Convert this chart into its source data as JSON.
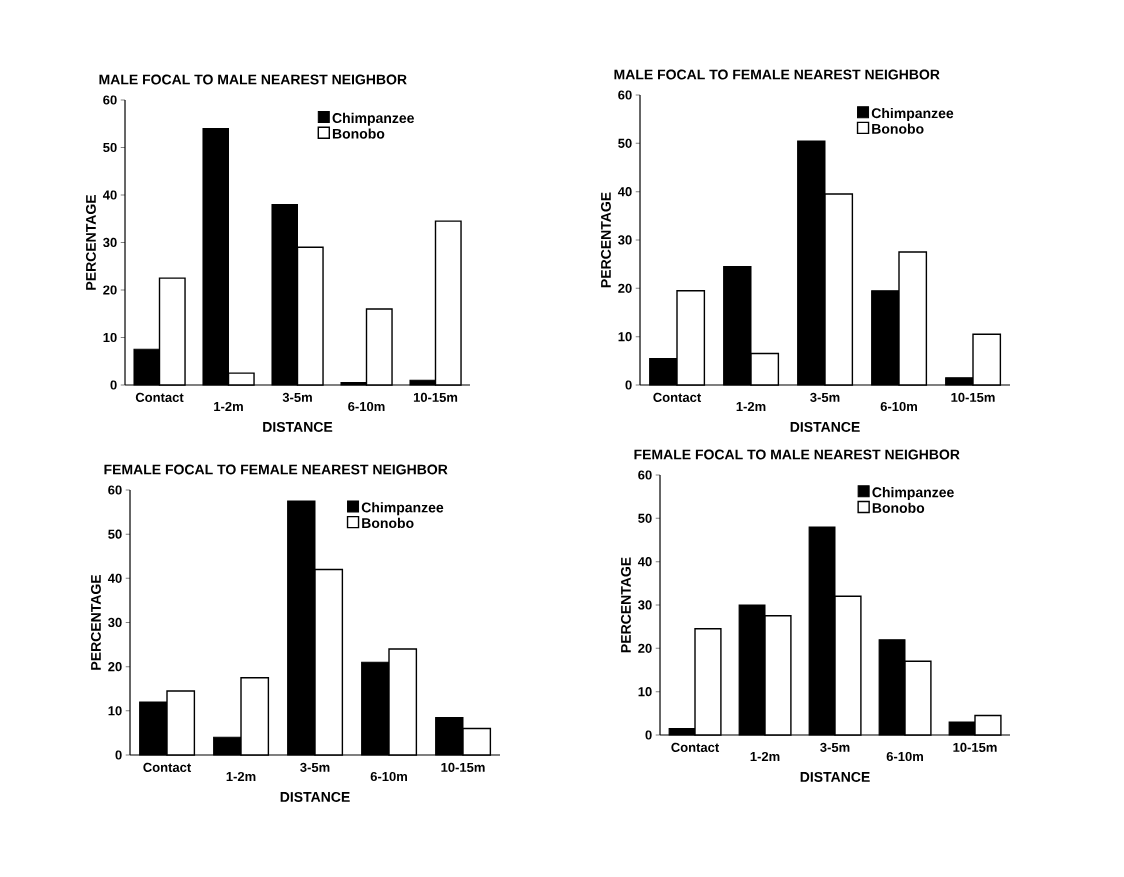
{
  "chart_data": [
    {
      "type": "bar",
      "title": "MALE FOCAL TO MALE NEAREST NEIGHBOR",
      "xlabel": "DISTANCE",
      "ylabel": "PERCENTAGE",
      "categories": [
        "Contact",
        "1-2m",
        "3-5m",
        "6-10m",
        "10-15m"
      ],
      "ylim": [
        0,
        60
      ],
      "yticks": [
        0,
        10,
        20,
        30,
        40,
        50,
        60
      ],
      "legend": "top right",
      "series": [
        {
          "name": "Chimpanzee",
          "color": "#000000",
          "values": [
            7.5,
            54,
            38,
            0.5,
            1
          ]
        },
        {
          "name": "Bonobo",
          "color": "#ffffff",
          "values": [
            22.5,
            2.5,
            29,
            16,
            34.5
          ]
        }
      ]
    },
    {
      "type": "bar",
      "title": "MALE FOCAL TO FEMALE NEAREST NEIGHBOR",
      "xlabel": "DISTANCE",
      "ylabel": "PERCENTAGE",
      "categories": [
        "Contact",
        "1-2m",
        "3-5m",
        "6-10m",
        "10-15m"
      ],
      "ylim": [
        0,
        60
      ],
      "yticks": [
        0,
        10,
        20,
        30,
        40,
        50,
        60
      ],
      "legend": "top right",
      "series": [
        {
          "name": "Chimpanzee",
          "color": "#000000",
          "values": [
            5.5,
            24.5,
            50.5,
            19.5,
            1.5
          ]
        },
        {
          "name": "Bonobo",
          "color": "#ffffff",
          "values": [
            19.5,
            6.5,
            39.5,
            27.5,
            10.5
          ]
        }
      ]
    },
    {
      "type": "bar",
      "title": "FEMALE FOCAL TO FEMALE NEAREST NEIGHBOR",
      "xlabel": "DISTANCE",
      "ylabel": "PERCENTAGE",
      "categories": [
        "Contact",
        "1-2m",
        "3-5m",
        "6-10m",
        "10-15m"
      ],
      "ylim": [
        0,
        60
      ],
      "yticks": [
        0,
        10,
        20,
        30,
        40,
        50,
        60
      ],
      "legend": "top right",
      "series": [
        {
          "name": "Chimpanzee",
          "color": "#000000",
          "values": [
            12,
            4,
            57.5,
            21,
            8.5
          ]
        },
        {
          "name": "Bonobo",
          "color": "#ffffff",
          "values": [
            14.5,
            17.5,
            42,
            24,
            6
          ]
        }
      ]
    },
    {
      "type": "bar",
      "title": "FEMALE FOCAL TO MALE NEAREST NEIGHBOR",
      "xlabel": "DISTANCE",
      "ylabel": "PERCENTAGE",
      "categories": [
        "Contact",
        "1-2m",
        "3-5m",
        "6-10m",
        "10-15m"
      ],
      "ylim": [
        0,
        60
      ],
      "yticks": [
        0,
        10,
        20,
        30,
        40,
        50,
        60
      ],
      "legend": "top right",
      "series": [
        {
          "name": "Chimpanzee",
          "color": "#000000",
          "values": [
            1.5,
            30,
            48,
            22,
            3
          ]
        },
        {
          "name": "Bonobo",
          "color": "#ffffff",
          "values": [
            24.5,
            27.5,
            32,
            17,
            4.5
          ]
        }
      ]
    }
  ]
}
